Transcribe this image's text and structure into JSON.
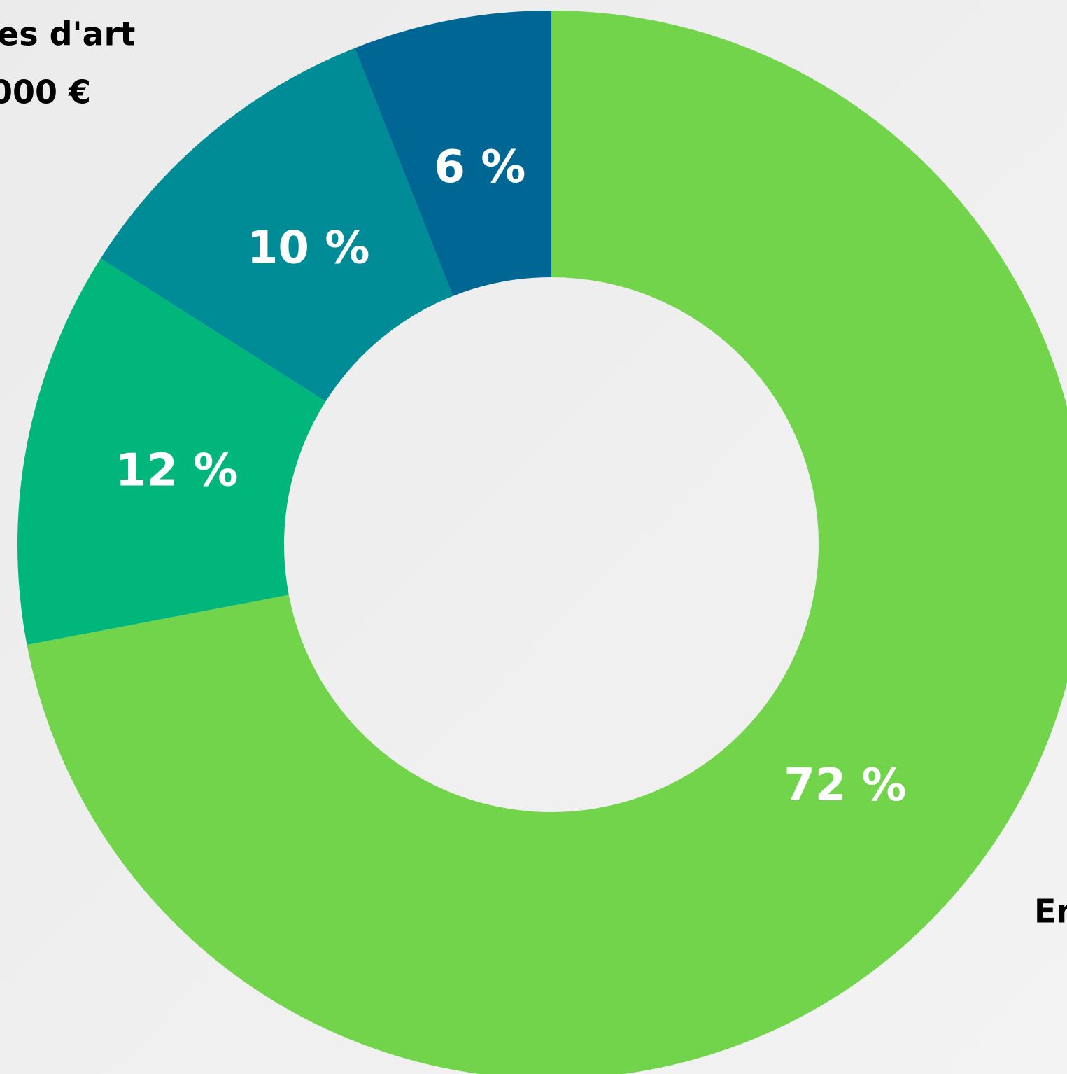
{
  "chart_data": {
    "type": "donut",
    "categories": [
      null,
      null,
      null,
      null
    ],
    "values": [
      72,
      12,
      10,
      6
    ],
    "value_labels": [
      "72 %",
      "12 %",
      "10 %",
      "6 %"
    ],
    "colors": [
      "#72d44b",
      "#00b67a",
      "#008c96",
      "#006694"
    ],
    "annotations": [
      "es d'art",
      "000 €",
      "En"
    ]
  }
}
